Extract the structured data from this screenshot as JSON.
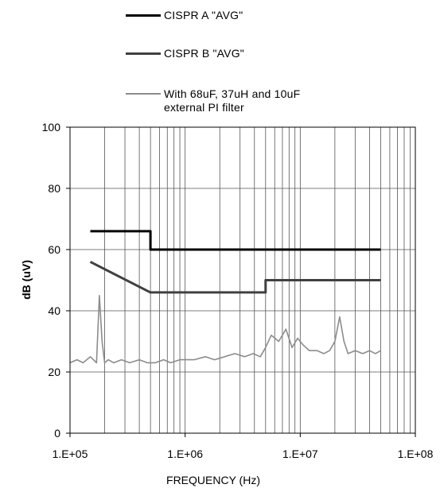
{
  "chart_data": {
    "type": "line",
    "title": "",
    "xlabel": "FREQUENCY (Hz)",
    "ylabel": "dB (uV)",
    "x_scale": "log",
    "xlim": [
      100000,
      100000000
    ],
    "ylim": [
      0,
      100
    ],
    "grid": true,
    "legend_position": "top",
    "x_ticks": [
      100000,
      1000000,
      10000000,
      100000000
    ],
    "x_tick_labels": [
      "1.E+05",
      "1.E+06",
      "1.E+07",
      "1.E+08"
    ],
    "y_ticks": [
      0,
      20,
      40,
      60,
      80,
      100
    ],
    "y_tick_labels": [
      "0",
      "20",
      "40",
      "60",
      "80",
      "100"
    ],
    "series": [
      {
        "name": "CISPR A \"AVG\"",
        "color": "#000000",
        "x": [
          150000,
          500000,
          500000,
          50000000
        ],
        "y": [
          66,
          66,
          60,
          60
        ]
      },
      {
        "name": "CISPR B \"AVG\"",
        "color": "#404040",
        "x": [
          150000,
          500000,
          5000000,
          5000000,
          50000000
        ],
        "y": [
          56,
          46,
          46,
          50,
          50
        ]
      },
      {
        "name": "With 68uF, 37uH and 10uF external PI filter",
        "color": "#8c8c8c",
        "x": [
          100000,
          115000,
          130000,
          150000,
          170000,
          180000,
          190000,
          200000,
          215000,
          240000,
          280000,
          330000,
          400000,
          470000,
          550000,
          650000,
          750000,
          900000,
          1000000,
          1200000,
          1500000,
          1800000,
          2200000,
          2700000,
          3300000,
          3900000,
          4500000,
          5000000,
          5600000,
          6500000,
          7500000,
          8500000,
          9500000,
          10500000,
          12000000,
          14000000,
          16000000,
          18000000,
          20000000,
          22000000,
          24000000,
          26000000,
          30000000,
          35000000,
          40000000,
          45000000,
          50000000
        ],
        "y": [
          23,
          24,
          23,
          25,
          23,
          45,
          30,
          23,
          24,
          23,
          24,
          23,
          24,
          23,
          23,
          24,
          23,
          24,
          24,
          24,
          25,
          24,
          25,
          26,
          25,
          26,
          25,
          28,
          32,
          30,
          34,
          28,
          31,
          29,
          27,
          27,
          26,
          27,
          30,
          38,
          30,
          26,
          27,
          26,
          27,
          26,
          27
        ]
      }
    ]
  }
}
